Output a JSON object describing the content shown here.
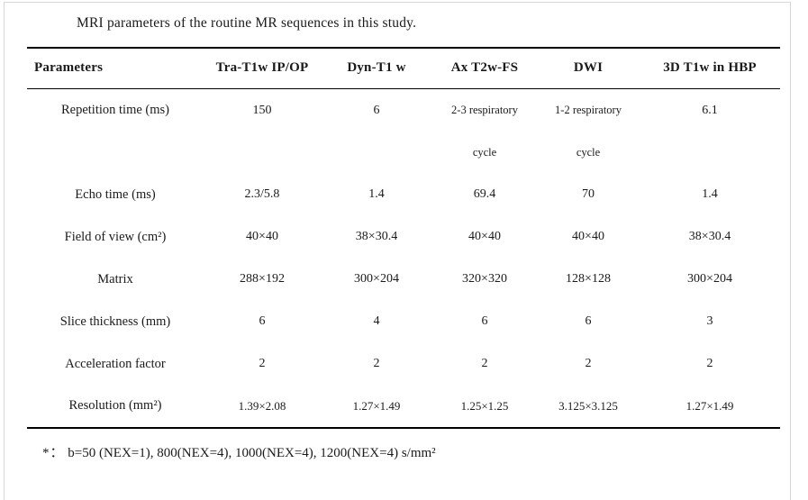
{
  "title": "MRI parameters of the routine MR sequences in this study.",
  "table": {
    "columns": [
      "Parameters",
      "Tra-T1w IP/OP",
      "Dyn-T1 w",
      "Ax T2w-FS",
      "DWI",
      "3D T1w in HBP"
    ],
    "rows": [
      {
        "label": "Repetition time (ms)",
        "values": [
          "150",
          "6",
          "2-3 respiratory\ncycle",
          "1-2 respiratory\ncycle",
          "6.1"
        ]
      },
      {
        "label": "Echo time (ms)",
        "values": [
          "2.3/5.8",
          "1.4",
          "69.4",
          "70",
          "1.4"
        ]
      },
      {
        "label": "Field of view (cm²)",
        "values": [
          "40×40",
          "38×30.4",
          "40×40",
          "40×40",
          "38×30.4"
        ]
      },
      {
        "label": "Matrix",
        "values": [
          "288×192",
          "300×204",
          "320×320",
          "128×128",
          "300×204"
        ]
      },
      {
        "label": "Slice thickness (mm)",
        "values": [
          "6",
          "4",
          "6",
          "6",
          "3"
        ]
      },
      {
        "label": "Acceleration factor",
        "values": [
          "2",
          "2",
          "2",
          "2",
          "2"
        ]
      },
      {
        "label": "Resolution (mm²)",
        "values": [
          "1.39×2.08",
          "1.27×1.49",
          "1.25×1.25",
          "3.125×3.125",
          "1.27×1.49"
        ]
      }
    ]
  },
  "footnote": {
    "marker": "*：",
    "text": "b=50 (NEX=1), 800(NEX=4), 1000(NEX=4), 1200(NEX=4) s/mm²"
  },
  "colors": {
    "text": "#1a1a1a",
    "rule": "#000000",
    "page_border": "#d6d6d6"
  }
}
